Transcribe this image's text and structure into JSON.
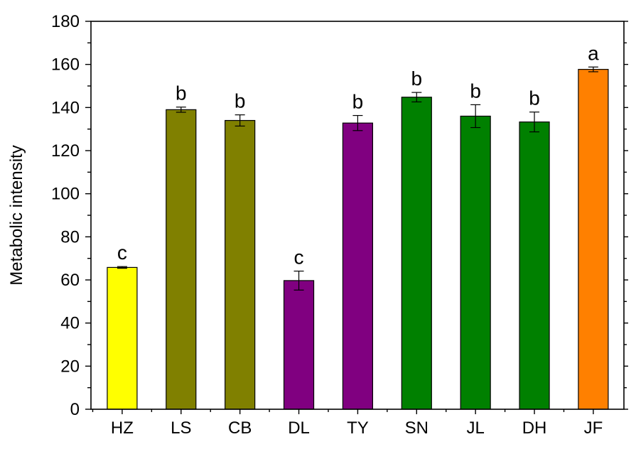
{
  "chart_data": {
    "type": "bar",
    "ylabel": "Metabolic intensity",
    "xlabel": "",
    "ylim": [
      0,
      180
    ],
    "yticks": [
      0,
      20,
      40,
      60,
      80,
      100,
      120,
      140,
      160,
      180
    ],
    "categories": [
      "HZ",
      "LS",
      "CB",
      "DL",
      "TY",
      "SN",
      "JL",
      "DH",
      "JF"
    ],
    "values": [
      65.8,
      139.0,
      134.0,
      59.7,
      132.8,
      144.8,
      136.0,
      133.3,
      157.7
    ],
    "errors": [
      0.4,
      1.2,
      2.6,
      4.4,
      3.5,
      2.2,
      5.3,
      4.6,
      1.1
    ],
    "significance": [
      "c",
      "b",
      "b",
      "c",
      "b",
      "b",
      "b",
      "b",
      "a"
    ],
    "colors": [
      "#ffff00",
      "#808000",
      "#808000",
      "#800080",
      "#800080",
      "#008000",
      "#008000",
      "#008000",
      "#ff8000"
    ]
  }
}
